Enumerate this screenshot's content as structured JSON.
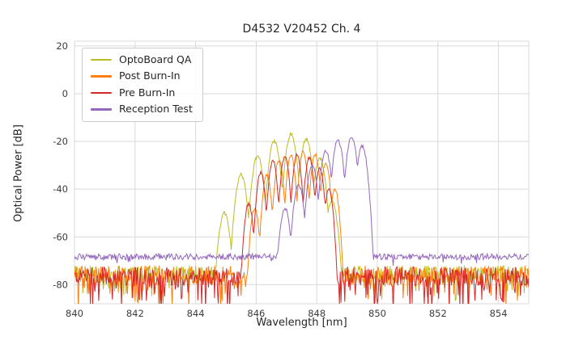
{
  "chart_data": {
    "type": "line",
    "title": "D4532 V20452 Ch. 4",
    "xlabel": "Wavelength [nm]",
    "ylabel": "Optical Power [dB]",
    "xlim": [
      840,
      855
    ],
    "ylim": [
      -88,
      22
    ],
    "xticks": [
      840,
      842,
      844,
      846,
      848,
      850,
      852,
      854
    ],
    "yticks": [
      20,
      0,
      -20,
      -40,
      -60,
      -80
    ],
    "grid": true,
    "grid_color": "#d9d9d9",
    "text_color": "#3c3c3c",
    "background": "#ffffff",
    "legend_position": "upper-left",
    "series": [
      {
        "name": "OptoBoard QA",
        "color": "#bcbd22",
        "baseline_db": -75.5,
        "noise": {
          "jitter_db": 7,
          "spike_prob": 0.14,
          "spike_depth_db": 9
        },
        "mode_width_nm": 0.26,
        "modes": [
          [
            844.95,
            -50
          ],
          [
            845.5,
            -34
          ],
          [
            846.05,
            -26
          ],
          [
            846.6,
            -20
          ],
          [
            847.15,
            -17
          ],
          [
            847.65,
            -19
          ],
          [
            848.1,
            -27
          ],
          [
            848.5,
            -45
          ]
        ]
      },
      {
        "name": "Post Burn-In",
        "color": "#ff7f0e",
        "baseline_db": -76,
        "noise": {
          "jitter_db": 8,
          "spike_prob": 0.2,
          "spike_depth_db": 11
        },
        "mode_width_nm": 0.2,
        "modes": [
          [
            845.95,
            -48
          ],
          [
            846.35,
            -34
          ],
          [
            846.75,
            -28
          ],
          [
            847.15,
            -25.5
          ],
          [
            847.55,
            -24.5
          ],
          [
            847.95,
            -25.5
          ],
          [
            848.3,
            -29
          ],
          [
            848.6,
            -40
          ]
        ]
      },
      {
        "name": "Pre Burn-In",
        "color": "#d62728",
        "baseline_db": -76.5,
        "noise": {
          "jitter_db": 8,
          "spike_prob": 0.26,
          "spike_depth_db": 14
        },
        "mode_width_nm": 0.2,
        "modes": [
          [
            845.75,
            -46
          ],
          [
            846.15,
            -33
          ],
          [
            846.55,
            -28
          ],
          [
            846.95,
            -26
          ],
          [
            847.35,
            -25.5
          ],
          [
            847.75,
            -27
          ],
          [
            848.1,
            -31
          ],
          [
            848.4,
            -40
          ]
        ]
      },
      {
        "name": "Reception Test",
        "color": "#9467bd",
        "baseline_db": -68.3,
        "noise": {
          "jitter_db": 2.6,
          "spike_prob": 0.03,
          "spike_depth_db": 3
        },
        "mode_width_nm": 0.24,
        "modes": [
          [
            846.95,
            -48
          ],
          [
            847.4,
            -38
          ],
          [
            847.85,
            -30
          ],
          [
            848.3,
            -24
          ],
          [
            848.7,
            -19.5
          ],
          [
            849.15,
            -18
          ],
          [
            849.5,
            -22
          ]
        ]
      }
    ]
  }
}
